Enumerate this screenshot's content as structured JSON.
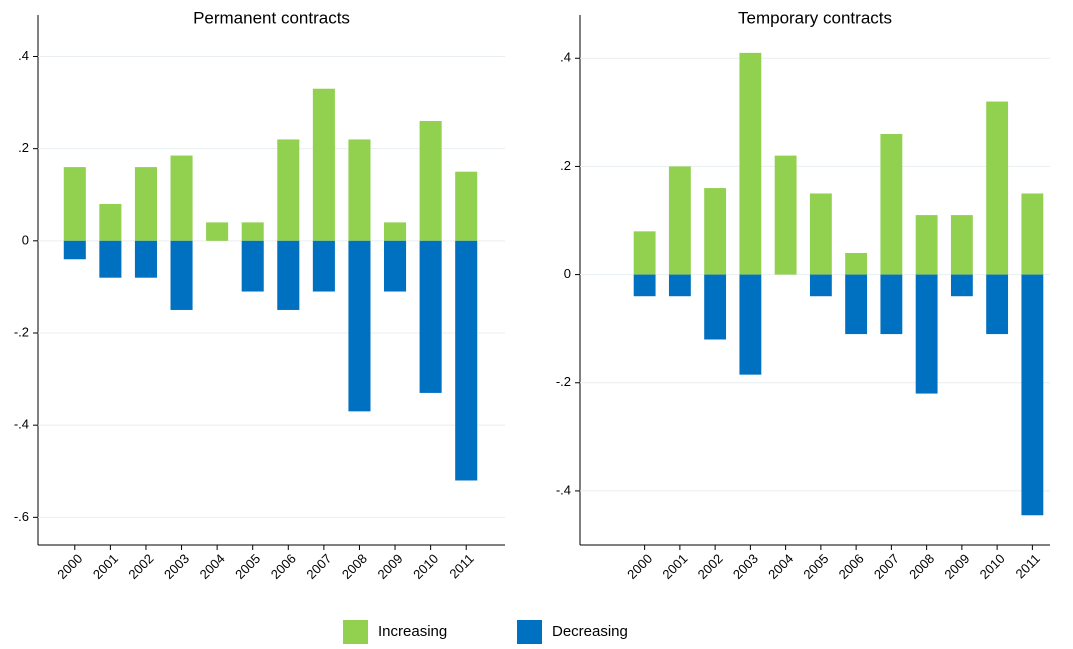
{
  "chart_data": [
    {
      "type": "bar",
      "title": "Permanent contracts",
      "categories": [
        "2000",
        "2001",
        "2002",
        "2003",
        "2004",
        "2005",
        "2006",
        "2007",
        "2008",
        "2009",
        "2010",
        "2011"
      ],
      "series": [
        {
          "name": "Increasing",
          "color": "#92d050",
          "values": [
            0.16,
            0.08,
            0.16,
            0.185,
            0.04,
            0.04,
            0.22,
            0.33,
            0.22,
            0.04,
            0.26,
            0.15
          ]
        },
        {
          "name": "Decreasing",
          "color": "#0070c0",
          "values": [
            -0.04,
            -0.08,
            -0.08,
            -0.15,
            0,
            -0.11,
            -0.15,
            -0.11,
            -0.37,
            -0.11,
            -0.33,
            -0.52
          ]
        }
      ],
      "ylim": [
        -0.66,
        0.49
      ],
      "yticks": [
        {
          "value": -0.6,
          "label": "-.6"
        },
        {
          "value": -0.4,
          "label": "-.4"
        },
        {
          "value": -0.2,
          "label": "-.2"
        },
        0,
        {
          "value": 0.2,
          "label": ".2"
        },
        {
          "value": 0.4,
          "label": ".4"
        }
      ],
      "grid": true
    },
    {
      "type": "bar",
      "title": "Temporary contracts",
      "categories": [
        "2000",
        "2001",
        "2002",
        "2003",
        "2004",
        "2005",
        "2006",
        "2007",
        "2008",
        "2009",
        "2010",
        "2011"
      ],
      "series": [
        {
          "name": "Increasing",
          "color": "#92d050",
          "values": [
            0.08,
            0.2,
            0.16,
            0.41,
            0.22,
            0.15,
            0.04,
            0.26,
            0.11,
            0.11,
            0.32,
            0.15
          ]
        },
        {
          "name": "Decreasing",
          "color": "#0070c0",
          "values": [
            -0.04,
            -0.04,
            -0.12,
            -0.185,
            0,
            -0.04,
            -0.11,
            -0.11,
            -0.22,
            -0.04,
            -0.11,
            -0.445
          ]
        }
      ],
      "ylim": [
        -0.5,
        0.48
      ],
      "yticks": [
        {
          "value": -0.4,
          "label": "-.4"
        },
        {
          "value": -0.2,
          "label": "-.2"
        },
        0,
        {
          "value": 0.2,
          "label": ".2"
        },
        {
          "value": 0.4,
          "label": ".4"
        }
      ],
      "grid": true
    }
  ]
}
